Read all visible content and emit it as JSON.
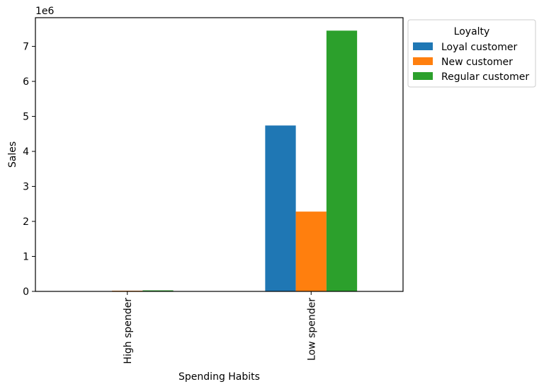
{
  "chart_data": {
    "type": "bar",
    "title": "",
    "xlabel": "Spending Habits",
    "ylabel": "Sales",
    "scale_label": "1e6",
    "categories": [
      "High spender",
      "Low spender"
    ],
    "ylim": [
      0,
      7.82
    ],
    "yticks": [
      0,
      1,
      2,
      3,
      4,
      5,
      6,
      7
    ],
    "grid": false,
    "legend": {
      "title": "Loyalty",
      "placement": "outside-right-top"
    },
    "series": [
      {
        "name": "Loyal customer",
        "color": "#1f77b4",
        "values": [
          0.0,
          4.74
        ]
      },
      {
        "name": "New customer",
        "color": "#ff7f0e",
        "values": [
          0.02,
          2.28
        ]
      },
      {
        "name": "Regular customer",
        "color": "#2ca02c",
        "values": [
          0.03,
          7.45
        ]
      }
    ]
  }
}
